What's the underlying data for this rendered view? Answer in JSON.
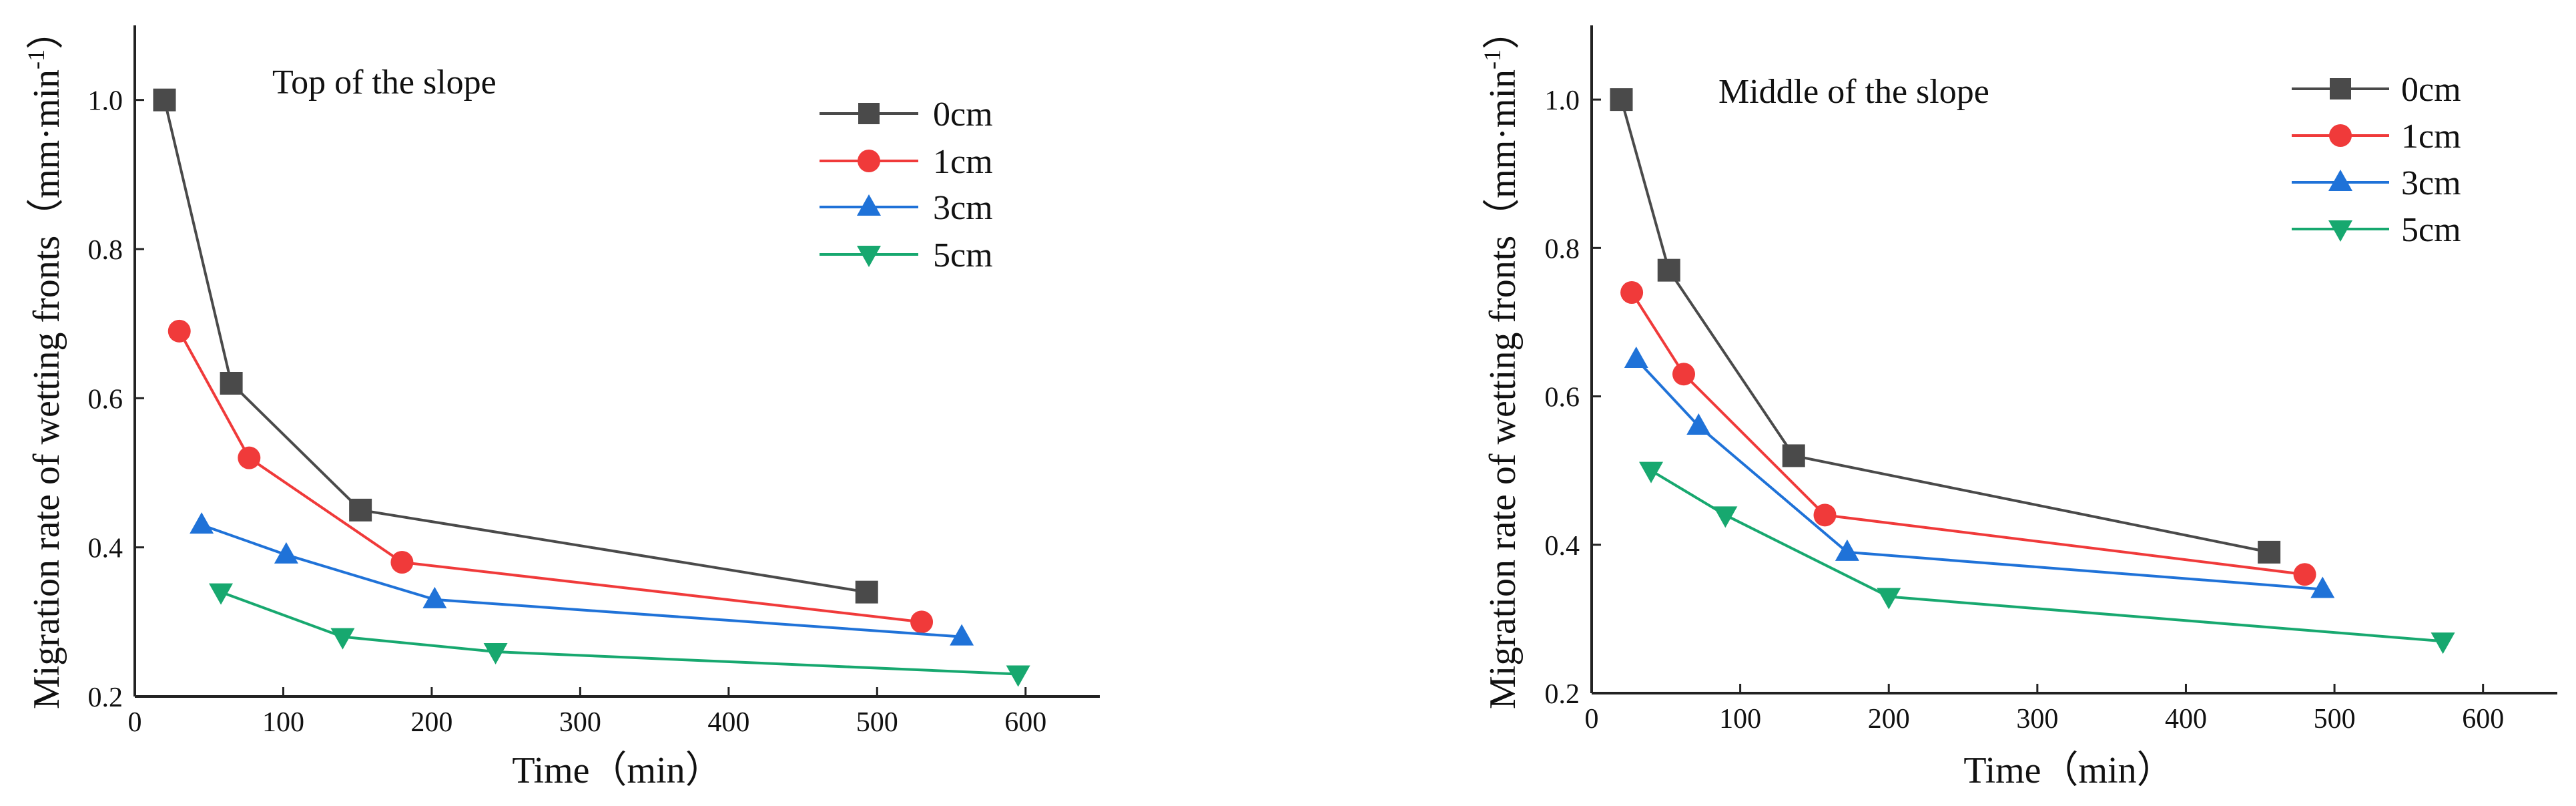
{
  "chart_data": [
    {
      "type": "line",
      "title": "Top of the slope",
      "xlabel": "Time（min）",
      "ylabel": "Migration rate of wetting fronts（mm·min",
      "ylabel_sup": "-1",
      "ylabel_close": "）",
      "xlim": [
        0,
        650
      ],
      "ylim": [
        0.2,
        1.1
      ],
      "xticks": [
        0,
        100,
        200,
        300,
        400,
        500,
        600
      ],
      "yticks": [
        0.2,
        0.4,
        0.6,
        0.8,
        1.0
      ],
      "xtick_labels": [
        "0",
        "100",
        "200",
        "300",
        "400",
        "500",
        "600"
      ],
      "ytick_labels": [
        "0.2",
        "0.4",
        "0.6",
        "0.8",
        "1.0"
      ],
      "grid": false,
      "legend_position": "top-right",
      "series": [
        {
          "name": "0cm",
          "color": "#4a4a4a",
          "marker": "square",
          "x": [
            20,
            65,
            152,
            493
          ],
          "y": [
            1.0,
            0.62,
            0.45,
            0.34
          ]
        },
        {
          "name": "1cm",
          "color": "#f03a3a",
          "marker": "circle",
          "x": [
            30,
            77,
            180,
            530
          ],
          "y": [
            0.69,
            0.52,
            0.38,
            0.3
          ]
        },
        {
          "name": "3cm",
          "color": "#1f72d8",
          "marker": "triangle-up",
          "x": [
            45,
            102,
            202,
            557
          ],
          "y": [
            0.43,
            0.39,
            0.33,
            0.28
          ]
        },
        {
          "name": "5cm",
          "color": "#17a86f",
          "marker": "triangle-down",
          "x": [
            58,
            140,
            243,
            595
          ],
          "y": [
            0.34,
            0.28,
            0.26,
            0.23
          ]
        }
      ]
    },
    {
      "type": "line",
      "title": "Middle of the slope",
      "xlabel": "Time（min）",
      "ylabel": "Migration rate of wetting fronts（mm·min",
      "ylabel_sup": "-1",
      "ylabel_close": "）",
      "xlim": [
        0,
        650
      ],
      "ylim": [
        0.2,
        1.1
      ],
      "xticks": [
        0,
        100,
        200,
        300,
        400,
        500,
        600
      ],
      "yticks": [
        0.2,
        0.4,
        0.6,
        0.8,
        1.0
      ],
      "xtick_labels": [
        "0",
        "100",
        "200",
        "300",
        "400",
        "500",
        "600"
      ],
      "ytick_labels": [
        "0.2",
        "0.4",
        "0.6",
        "0.8",
        "1.0"
      ],
      "grid": false,
      "legend_position": "top-right",
      "series": [
        {
          "name": "0cm",
          "color": "#4a4a4a",
          "marker": "square",
          "x": [
            20,
            52,
            136,
            456
          ],
          "y": [
            1.0,
            0.77,
            0.52,
            0.39
          ]
        },
        {
          "name": "1cm",
          "color": "#f03a3a",
          "marker": "circle",
          "x": [
            27,
            62,
            157,
            480
          ],
          "y": [
            0.74,
            0.63,
            0.44,
            0.36
          ]
        },
        {
          "name": "3cm",
          "color": "#1f72d8",
          "marker": "triangle-up",
          "x": [
            30,
            72,
            172,
            492
          ],
          "y": [
            0.65,
            0.56,
            0.39,
            0.34
          ]
        },
        {
          "name": "5cm",
          "color": "#17a86f",
          "marker": "triangle-down",
          "x": [
            40,
            90,
            200,
            573
          ],
          "y": [
            0.5,
            0.44,
            0.33,
            0.27
          ]
        }
      ]
    }
  ]
}
